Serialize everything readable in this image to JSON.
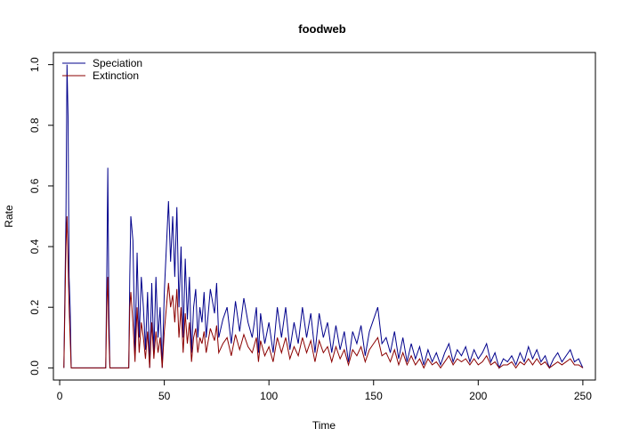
{
  "chart_data": {
    "type": "line",
    "title": "foodweb",
    "xlabel": "Time",
    "ylabel": "Rate",
    "xlim": [
      -3,
      256
    ],
    "ylim": [
      -0.04,
      1.04
    ],
    "x_ticks": [
      0,
      50,
      100,
      150,
      200,
      250
    ],
    "y_ticks": [
      0.0,
      0.2,
      0.4,
      0.6,
      0.8,
      1.0
    ],
    "x_tick_labels": [
      "0",
      "50",
      "100",
      "150",
      "200",
      "250"
    ],
    "y_tick_labels": [
      "0.0",
      "0.2",
      "0.4",
      "0.6",
      "0.8",
      "1.0"
    ],
    "grid": false,
    "legend_position": "top-left",
    "series": [
      {
        "name": "Speciation",
        "color": "#00008b",
        "points": [
          [
            2,
            0
          ],
          [
            2.5,
            0.25
          ],
          [
            3,
            0.5
          ],
          [
            3.5,
            1.0
          ],
          [
            4,
            0.83
          ],
          [
            4.5,
            0.3
          ],
          [
            5,
            0.2
          ],
          [
            5.5,
            0
          ],
          [
            10,
            0
          ],
          [
            20,
            0
          ],
          [
            22,
            0
          ],
          [
            22.5,
            0.3
          ],
          [
            23,
            0.66
          ],
          [
            23.5,
            0.2
          ],
          [
            24,
            0
          ],
          [
            30,
            0
          ],
          [
            33,
            0
          ],
          [
            33.5,
            0.3
          ],
          [
            34,
            0.5
          ],
          [
            35,
            0.42
          ],
          [
            36,
            0.05
          ],
          [
            37,
            0.38
          ],
          [
            38,
            0.1
          ],
          [
            39,
            0.3
          ],
          [
            40,
            0.2
          ],
          [
            41,
            0.06
          ],
          [
            42,
            0.25
          ],
          [
            43,
            0
          ],
          [
            44,
            0.28
          ],
          [
            45,
            0.05
          ],
          [
            46,
            0.3
          ],
          [
            47,
            0.1
          ],
          [
            48,
            0.2
          ],
          [
            49,
            0
          ],
          [
            50,
            0.25
          ],
          [
            51,
            0.4
          ],
          [
            52,
            0.55
          ],
          [
            53,
            0.35
          ],
          [
            54,
            0.5
          ],
          [
            55,
            0.3
          ],
          [
            56,
            0.53
          ],
          [
            57,
            0.2
          ],
          [
            58,
            0.4
          ],
          [
            59,
            0.1
          ],
          [
            60,
            0.36
          ],
          [
            61,
            0.16
          ],
          [
            62,
            0.3
          ],
          [
            63,
            0.05
          ],
          [
            64,
            0.2
          ],
          [
            65,
            0.26
          ],
          [
            66,
            0.1
          ],
          [
            67,
            0.2
          ],
          [
            68,
            0.15
          ],
          [
            69,
            0.25
          ],
          [
            70,
            0.1
          ],
          [
            72,
            0.26
          ],
          [
            74,
            0.18
          ],
          [
            75,
            0.28
          ],
          [
            76,
            0.1
          ],
          [
            78,
            0.16
          ],
          [
            80,
            0.2
          ],
          [
            82,
            0.08
          ],
          [
            84,
            0.22
          ],
          [
            86,
            0.12
          ],
          [
            88,
            0.23
          ],
          [
            90,
            0.15
          ],
          [
            92,
            0.1
          ],
          [
            94,
            0.2
          ],
          [
            95,
            0.05
          ],
          [
            96,
            0.18
          ],
          [
            98,
            0.08
          ],
          [
            100,
            0.15
          ],
          [
            102,
            0.05
          ],
          [
            104,
            0.2
          ],
          [
            106,
            0.1
          ],
          [
            108,
            0.2
          ],
          [
            110,
            0.06
          ],
          [
            112,
            0.15
          ],
          [
            114,
            0.08
          ],
          [
            116,
            0.2
          ],
          [
            118,
            0.1
          ],
          [
            120,
            0.18
          ],
          [
            122,
            0.05
          ],
          [
            124,
            0.18
          ],
          [
            126,
            0.1
          ],
          [
            128,
            0.15
          ],
          [
            130,
            0.05
          ],
          [
            132,
            0.14
          ],
          [
            134,
            0.06
          ],
          [
            136,
            0.12
          ],
          [
            138,
            0.02
          ],
          [
            140,
            0.12
          ],
          [
            142,
            0.08
          ],
          [
            144,
            0.14
          ],
          [
            146,
            0.04
          ],
          [
            148,
            0.12
          ],
          [
            150,
            0.16
          ],
          [
            152,
            0.2
          ],
          [
            154,
            0.08
          ],
          [
            156,
            0.1
          ],
          [
            158,
            0.05
          ],
          [
            160,
            0.12
          ],
          [
            162,
            0.03
          ],
          [
            164,
            0.1
          ],
          [
            166,
            0.02
          ],
          [
            168,
            0.08
          ],
          [
            170,
            0.03
          ],
          [
            172,
            0.07
          ],
          [
            174,
            0.01
          ],
          [
            176,
            0.06
          ],
          [
            178,
            0.02
          ],
          [
            180,
            0.05
          ],
          [
            182,
            0.01
          ],
          [
            184,
            0.05
          ],
          [
            186,
            0.08
          ],
          [
            188,
            0.02
          ],
          [
            190,
            0.06
          ],
          [
            192,
            0.04
          ],
          [
            194,
            0.07
          ],
          [
            196,
            0.02
          ],
          [
            198,
            0.06
          ],
          [
            200,
            0.03
          ],
          [
            202,
            0.05
          ],
          [
            204,
            0.08
          ],
          [
            206,
            0.02
          ],
          [
            208,
            0.05
          ],
          [
            210,
            0.0
          ],
          [
            212,
            0.03
          ],
          [
            214,
            0.02
          ],
          [
            216,
            0.04
          ],
          [
            218,
            0.01
          ],
          [
            220,
            0.05
          ],
          [
            222,
            0.02
          ],
          [
            224,
            0.07
          ],
          [
            226,
            0.03
          ],
          [
            228,
            0.06
          ],
          [
            230,
            0.02
          ],
          [
            232,
            0.04
          ],
          [
            234,
            0.0
          ],
          [
            236,
            0.03
          ],
          [
            238,
            0.05
          ],
          [
            240,
            0.02
          ],
          [
            242,
            0.04
          ],
          [
            244,
            0.06
          ],
          [
            246,
            0.02
          ],
          [
            248,
            0.03
          ],
          [
            250,
            0.0
          ]
        ]
      },
      {
        "name": "Extinction",
        "color": "#8b0000",
        "points": [
          [
            2,
            0
          ],
          [
            2.5,
            0.2
          ],
          [
            3,
            0.4
          ],
          [
            3.5,
            0.5
          ],
          [
            4,
            0.35
          ],
          [
            4.5,
            0.2
          ],
          [
            5,
            0.1
          ],
          [
            5.5,
            0
          ],
          [
            10,
            0
          ],
          [
            20,
            0
          ],
          [
            22,
            0
          ],
          [
            22.5,
            0.2
          ],
          [
            23,
            0.3
          ],
          [
            23.5,
            0.1
          ],
          [
            24,
            0
          ],
          [
            30,
            0
          ],
          [
            33,
            0
          ],
          [
            33.5,
            0.2
          ],
          [
            34,
            0.25
          ],
          [
            35,
            0.15
          ],
          [
            36,
            0.02
          ],
          [
            37,
            0.2
          ],
          [
            38,
            0.05
          ],
          [
            39,
            0.15
          ],
          [
            40,
            0.1
          ],
          [
            41,
            0.03
          ],
          [
            42,
            0.12
          ],
          [
            43,
            0
          ],
          [
            44,
            0.15
          ],
          [
            45,
            0.03
          ],
          [
            46,
            0.12
          ],
          [
            47,
            0.05
          ],
          [
            48,
            0.1
          ],
          [
            49,
            0
          ],
          [
            50,
            0.12
          ],
          [
            51,
            0.2
          ],
          [
            52,
            0.28
          ],
          [
            53,
            0.2
          ],
          [
            54,
            0.24
          ],
          [
            55,
            0.15
          ],
          [
            56,
            0.26
          ],
          [
            57,
            0.1
          ],
          [
            58,
            0.2
          ],
          [
            59,
            0.05
          ],
          [
            60,
            0.18
          ],
          [
            61,
            0.08
          ],
          [
            62,
            0.15
          ],
          [
            63,
            0.02
          ],
          [
            64,
            0.1
          ],
          [
            65,
            0.13
          ],
          [
            66,
            0.05
          ],
          [
            67,
            0.1
          ],
          [
            68,
            0.08
          ],
          [
            69,
            0.12
          ],
          [
            70,
            0.05
          ],
          [
            72,
            0.13
          ],
          [
            74,
            0.09
          ],
          [
            75,
            0.14
          ],
          [
            76,
            0.05
          ],
          [
            78,
            0.08
          ],
          [
            80,
            0.1
          ],
          [
            82,
            0.04
          ],
          [
            84,
            0.11
          ],
          [
            86,
            0.06
          ],
          [
            88,
            0.11
          ],
          [
            90,
            0.07
          ],
          [
            92,
            0.05
          ],
          [
            94,
            0.1
          ],
          [
            95,
            0.02
          ],
          [
            96,
            0.09
          ],
          [
            98,
            0.04
          ],
          [
            100,
            0.07
          ],
          [
            102,
            0.02
          ],
          [
            104,
            0.1
          ],
          [
            106,
            0.05
          ],
          [
            108,
            0.1
          ],
          [
            110,
            0.03
          ],
          [
            112,
            0.07
          ],
          [
            114,
            0.04
          ],
          [
            116,
            0.1
          ],
          [
            118,
            0.05
          ],
          [
            120,
            0.09
          ],
          [
            122,
            0.02
          ],
          [
            124,
            0.09
          ],
          [
            126,
            0.05
          ],
          [
            128,
            0.07
          ],
          [
            130,
            0.02
          ],
          [
            132,
            0.07
          ],
          [
            134,
            0.03
          ],
          [
            136,
            0.06
          ],
          [
            138,
            0.01
          ],
          [
            140,
            0.06
          ],
          [
            142,
            0.04
          ],
          [
            144,
            0.07
          ],
          [
            146,
            0.02
          ],
          [
            148,
            0.06
          ],
          [
            150,
            0.08
          ],
          [
            152,
            0.1
          ],
          [
            154,
            0.04
          ],
          [
            156,
            0.05
          ],
          [
            158,
            0.02
          ],
          [
            160,
            0.06
          ],
          [
            162,
            0.01
          ],
          [
            164,
            0.05
          ],
          [
            166,
            0.01
          ],
          [
            168,
            0.04
          ],
          [
            170,
            0.01
          ],
          [
            172,
            0.03
          ],
          [
            174,
            0.0
          ],
          [
            176,
            0.03
          ],
          [
            178,
            0.01
          ],
          [
            180,
            0.02
          ],
          [
            182,
            0.0
          ],
          [
            184,
            0.02
          ],
          [
            186,
            0.04
          ],
          [
            188,
            0.01
          ],
          [
            190,
            0.03
          ],
          [
            192,
            0.02
          ],
          [
            194,
            0.03
          ],
          [
            196,
            0.01
          ],
          [
            198,
            0.03
          ],
          [
            200,
            0.01
          ],
          [
            202,
            0.02
          ],
          [
            204,
            0.04
          ],
          [
            206,
            0.01
          ],
          [
            208,
            0.02
          ],
          [
            210,
            0.0
          ],
          [
            212,
            0.01
          ],
          [
            214,
            0.01
          ],
          [
            216,
            0.02
          ],
          [
            218,
            0.0
          ],
          [
            220,
            0.02
          ],
          [
            222,
            0.01
          ],
          [
            224,
            0.03
          ],
          [
            226,
            0.01
          ],
          [
            228,
            0.03
          ],
          [
            230,
            0.01
          ],
          [
            232,
            0.02
          ],
          [
            234,
            0.0
          ],
          [
            236,
            0.01
          ],
          [
            238,
            0.02
          ],
          [
            240,
            0.01
          ],
          [
            242,
            0.02
          ],
          [
            244,
            0.03
          ],
          [
            246,
            0.01
          ],
          [
            248,
            0.01
          ],
          [
            250,
            0.0
          ]
        ]
      }
    ]
  }
}
